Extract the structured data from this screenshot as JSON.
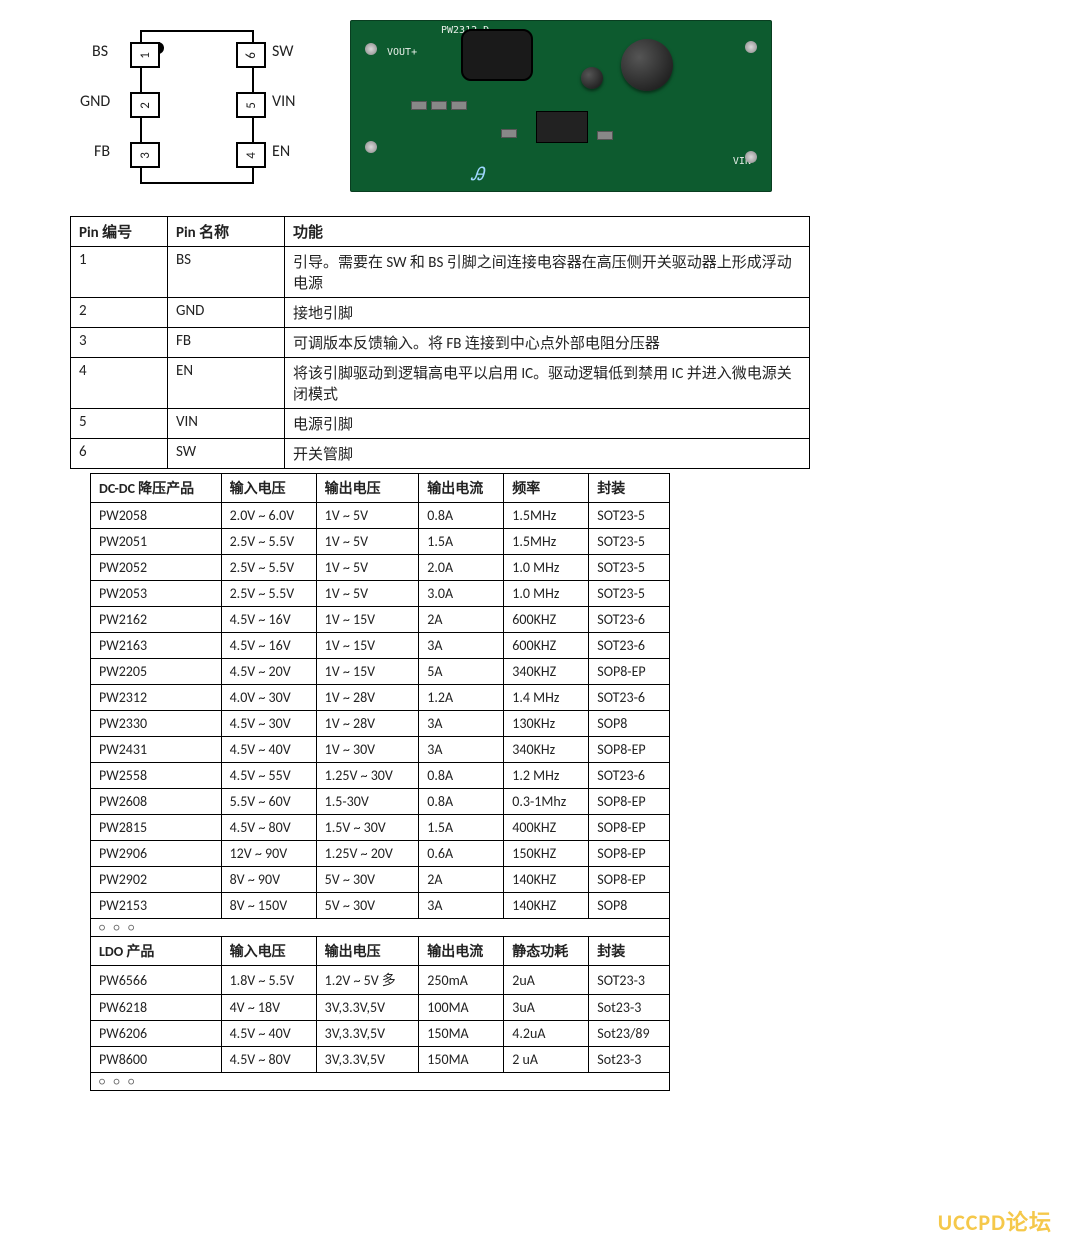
{
  "chip": {
    "left_pins": [
      {
        "num": "1",
        "name": "BS"
      },
      {
        "num": "2",
        "name": "GND"
      },
      {
        "num": "3",
        "name": "FB"
      }
    ],
    "right_pins": [
      {
        "num": "6",
        "name": "SW"
      },
      {
        "num": "5",
        "name": "VIN"
      },
      {
        "num": "4",
        "name": "EN"
      }
    ]
  },
  "pcb": {
    "top_label": "PW2312-D",
    "vout": "VOUT+",
    "vin": "VIN-"
  },
  "pin_table": {
    "headers": [
      "Pin 编号",
      "Pin 名称",
      "功能"
    ],
    "rows": [
      [
        "1",
        "BS",
        "引导。需要在 SW 和 BS 引脚之间连接电容器在高压侧开关驱动器上形成浮动电源"
      ],
      [
        "2",
        "GND",
        "接地引脚"
      ],
      [
        "3",
        "FB",
        "可调版本反馈输入。将 FB 连接到中心点外部电阻分压器"
      ],
      [
        "4",
        "EN",
        "将该引脚驱动到逻辑高电平以启用 IC。驱动逻辑低到禁用 IC 并进入微电源关闭模式"
      ],
      [
        "5",
        "VIN",
        "电源引脚"
      ],
      [
        "6",
        "SW",
        "开关管脚"
      ]
    ]
  },
  "dcdc": {
    "headers": [
      "DC-DC 降压产品",
      "输入电压",
      "输出电压",
      "输出电流",
      "频率",
      "封装"
    ],
    "rows": [
      [
        "PW2058",
        "2.0V ~ 6.0V",
        "1V ~ 5V",
        "0.8A",
        "1.5MHz",
        "SOT23-5"
      ],
      [
        "PW2051",
        "2.5V ~ 5.5V",
        "1V ~ 5V",
        "1.5A",
        "1.5MHz",
        "SOT23-5"
      ],
      [
        "PW2052",
        "2.5V ~ 5.5V",
        "1V ~ 5V",
        "2.0A",
        "1.0 MHz",
        "SOT23-5"
      ],
      [
        "PW2053",
        "2.5V ~ 5.5V",
        "1V ~ 5V",
        "3.0A",
        "1.0 MHz",
        "SOT23-5"
      ],
      [
        "PW2162",
        "4.5V ~ 16V",
        "1V ~ 15V",
        "2A",
        "600KHZ",
        "SOT23-6"
      ],
      [
        "PW2163",
        "4.5V ~ 16V",
        "1V ~ 15V",
        "3A",
        "600KHZ",
        "SOT23-6"
      ],
      [
        "PW2205",
        "4.5V ~ 20V",
        "1V ~ 15V",
        "5A",
        "340KHZ",
        "SOP8-EP"
      ],
      [
        "PW2312",
        "4.0V ~ 30V",
        "1V ~ 28V",
        "1.2A",
        "1.4 MHz",
        "SOT23-6"
      ],
      [
        "PW2330",
        "4.5V ~ 30V",
        "1V ~ 28V",
        "3A",
        "130KHz",
        "SOP8"
      ],
      [
        "PW2431",
        "4.5V ~ 40V",
        "1V ~ 30V",
        "3A",
        "340KHz",
        "SOP8-EP"
      ],
      [
        "PW2558",
        "4.5V ~ 55V",
        "1.25V ~ 30V",
        "0.8A",
        "1.2 MHz",
        "SOT23-6"
      ],
      [
        "PW2608",
        "5.5V ~ 60V",
        "1.5-30V",
        "0.8A",
        "0.3-1Mhz",
        "SOP8-EP"
      ],
      [
        "PW2815",
        "4.5V ~ 80V",
        "1.5V ~ 30V",
        "1.5A",
        "400KHZ",
        "SOP8-EP"
      ],
      [
        "PW2906",
        "12V ~ 90V",
        "1.25V ~ 20V",
        "0.6A",
        "150KHZ",
        "SOP8-EP"
      ],
      [
        "PW2902",
        "8V ~ 90V",
        "5V ~ 30V",
        "2A",
        "140KHZ",
        "SOP8-EP"
      ],
      [
        "PW2153",
        "8V ~ 150V",
        "5V ~ 30V",
        "3A",
        "140KHZ",
        "SOP8"
      ]
    ]
  },
  "ldo": {
    "headers": [
      "LDO 产品",
      "输入电压",
      "输出电压",
      "输出电流",
      "静态功耗",
      "封装"
    ],
    "rows": [
      [
        "PW6566",
        "1.8V ~ 5.5V",
        "1.2V ~ 5V 多",
        "250mA",
        "2uA",
        "SOT23-3"
      ],
      [
        "PW6218",
        "4V ~ 18V",
        "3V,3.3V,5V",
        "100MA",
        "3uA",
        "Sot23-3"
      ],
      [
        "PW6206",
        "4.5V ~ 40V",
        "3V,3.3V,5V",
        "150MA",
        "4.2uA",
        "Sot23/89"
      ],
      [
        "PW8600",
        "4.5V ~ 80V",
        "3V,3.3V,5V",
        "150MA",
        "2 uA",
        "Sot23-3"
      ]
    ]
  },
  "sep": "○ ○ ○",
  "watermark": "UCCPD论坛"
}
